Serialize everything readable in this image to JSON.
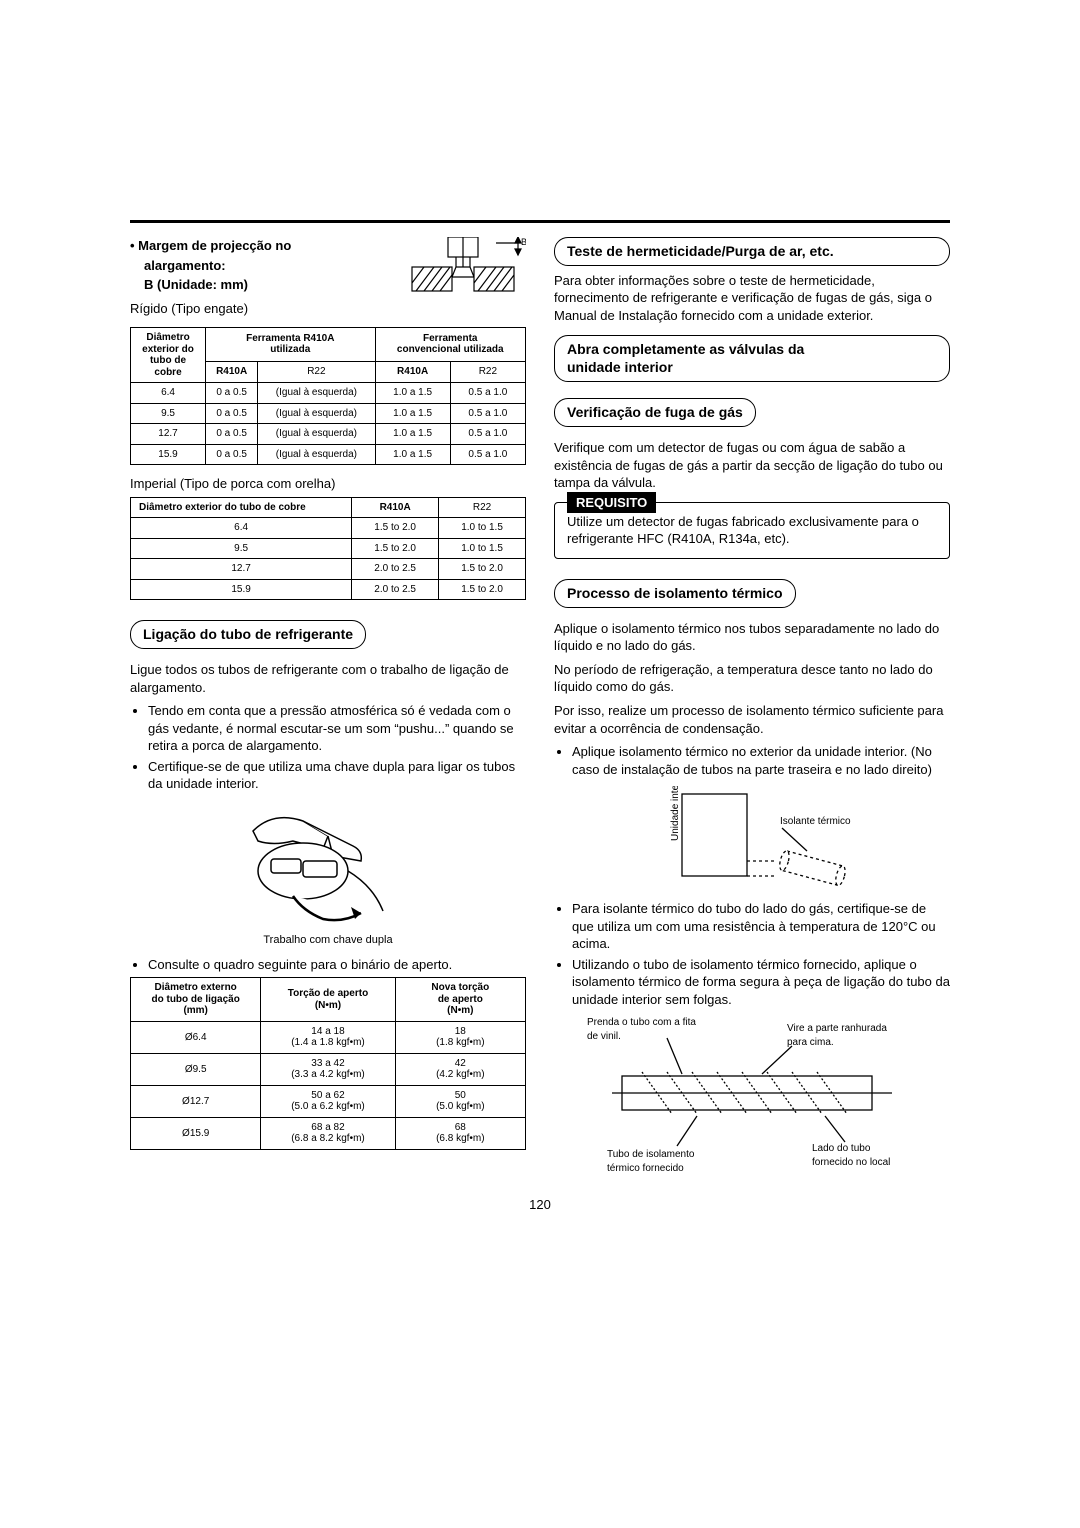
{
  "left": {
    "margin_head_l1": "• Margem de projecção no",
    "margin_head_l2": "alargamento:",
    "margin_head_l3": "B (Unidade: mm)",
    "diagram_b_label": "B",
    "rigid_caption": "Rígido (Tipo engate)",
    "table1": {
      "h_diam_l1": "Diâmetro",
      "h_diam_l2": "exterior do",
      "h_diam_l3": "tubo de cobre",
      "h_tool_r410a_l1": "Ferramenta R410A",
      "h_tool_r410a_l2": "utilizada",
      "h_tool_conv_l1": "Ferramenta",
      "h_tool_conv_l2": "convencional utilizada",
      "sub_r410a": "R410A",
      "sub_r22": "R22",
      "rows": [
        {
          "d": "6.4",
          "a": "0 a 0.5",
          "b": "(Igual à esquerda)",
          "c": "1.0 a 1.5",
          "e": "0.5 a 1.0"
        },
        {
          "d": "9.5",
          "a": "0 a 0.5",
          "b": "(Igual à esquerda)",
          "c": "1.0 a 1.5",
          "e": "0.5 a 1.0"
        },
        {
          "d": "12.7",
          "a": "0 a 0.5",
          "b": "(Igual à esquerda)",
          "c": "1.0 a 1.5",
          "e": "0.5 a 1.0"
        },
        {
          "d": "15.9",
          "a": "0 a 0.5",
          "b": "(Igual à esquerda)",
          "c": "1.0 a 1.5",
          "e": "0.5 a 1.0"
        }
      ]
    },
    "imperial_caption": "Imperial (Tipo de porca com orelha)",
    "table2": {
      "h_diam": "Diâmetro exterior do tubo de cobre",
      "h_r410a": "R410A",
      "h_r22": "R22",
      "rows": [
        {
          "d": "6.4",
          "a": "1.5 to 2.0",
          "b": "1.0 to 1.5"
        },
        {
          "d": "9.5",
          "a": "1.5 to 2.0",
          "b": "1.0 to 1.5"
        },
        {
          "d": "12.7",
          "a": "2.0 to 2.5",
          "b": "1.5 to 2.0"
        },
        {
          "d": "15.9",
          "a": "2.0 to 2.5",
          "b": "1.5 to 2.0"
        }
      ]
    },
    "sec_ligacao": "Ligação do tubo de refrigerante",
    "p_ligue": "Ligue todos os tubos de refrigerante com o trabalho de ligação de alargamento.",
    "li_tendo": "Tendo em conta que a pressão atmosférica só é vedada com o gás vedante, é normal escutar-se um som “pushu...” quando se retira a porca de alargamento.",
    "li_certifique": "Certifique-se de que utiliza uma chave dupla para ligar os tubos da unidade interior.",
    "fig_wrench_caption": "Trabalho com chave dupla",
    "li_consulte": "Consulte o quadro seguinte para o binário de aperto.",
    "table3": {
      "h_diam_l1": "Diâmetro externo",
      "h_diam_l2": "do tubo de ligação",
      "h_diam_l3": "(mm)",
      "h_torque_l1": "Torção de aperto",
      "h_torque_l2": "(N•m)",
      "h_new_l1": "Nova torção",
      "h_new_l2": "de aperto",
      "h_new_l3": "(N•m)",
      "rows": [
        {
          "d": "Ø6.4",
          "t": "14 a 18\n(1.4 a 1.8 kgf•m)",
          "n": "18\n(1.8 kgf•m)"
        },
        {
          "d": "Ø9.5",
          "t": "33 a 42\n(3.3 a 4.2 kgf•m)",
          "n": "42\n(4.2 kgf•m)"
        },
        {
          "d": "Ø12.7",
          "t": "50 a 62\n(5.0 a 6.2 kgf•m)",
          "n": "50\n(5.0 kgf•m)"
        },
        {
          "d": "Ø15.9",
          "t": "68 a 82\n(6.8 a 8.2 kgf•m)",
          "n": "68\n(6.8 kgf•m)"
        }
      ]
    }
  },
  "right": {
    "sec_teste": "Teste de hermeticidade/Purga de ar, etc.",
    "p_teste": "Para obter informações sobre o teste de hermeticidade, fornecimento de refrigerante e verificação de fugas de gás, siga o Manual de Instalação fornecido com a unidade exterior.",
    "sec_abra_l1": "Abra completamente as válvulas da",
    "sec_abra_l2": "unidade interior",
    "sec_verif": "Verificação de fuga de gás",
    "p_verif": "Verifique com um detector de fugas ou com água de sabão a existência de fugas de gás a partir da secção de ligação do tubo ou tampa da válvula.",
    "req_label": "REQUISITO",
    "req_text": "Utilize um detector de fugas fabricado exclusivamente para o refrigerante HFC (R410A, R134a, etc).",
    "sec_proc": "Processo de isolamento térmico",
    "p_proc1": "Aplique o isolamento térmico nos tubos separadamente no lado do líquido e no lado do gás.",
    "p_proc2": "No período de refrigeração, a temperatura desce tanto no lado do líquido como do gás.",
    "p_proc3": "Por isso, realize um processo de isolamento térmico suficiente para evitar a ocorrência de condensação.",
    "li_proc_a": "Aplique isolamento térmico no exterior da unidade interior. (No caso de instalação de tubos na parte traseira e no lado direito)",
    "fig1_unit": "Unidade interior",
    "fig1_insul": "Isolante térmico",
    "li_proc_b": "Para isolante térmico do tubo do lado do gás, certifique-se de que utiliza um com uma resistência à temperatura de 120°C ou acima.",
    "li_proc_c": "Utilizando o tubo de isolamento térmico fornecido, aplique o isolamento térmico de forma segura à peça de ligação do tubo da unidade interior sem folgas.",
    "fig2_vinyl_l1": "Prenda o tubo com a fita",
    "fig2_vinyl_l2": "de vinil.",
    "fig2_slit_l1": "Vire a parte ranhurada",
    "fig2_slit_l2": "para cima.",
    "fig2_supplied_l1": "Tubo de isolamento",
    "fig2_supplied_l2": "térmico fornecido",
    "fig2_local_l1": "Lado do tubo",
    "fig2_local_l2": "fornecido no local"
  },
  "page_number": "120"
}
